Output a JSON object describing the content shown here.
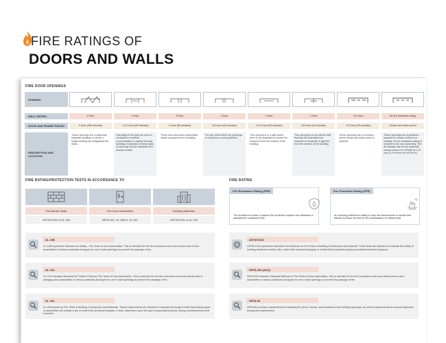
{
  "header": {
    "title_line1": "FIRE RATINGS OF",
    "title_line2": "DOORS AND WALLS"
  },
  "openings": {
    "section_title": "FIRE DOOR OPENINGS",
    "row_labels": {
      "opening": "OPENING",
      "wall_rating": "WALL RATING",
      "door_frame": "DOOR AND FRAME RATING",
      "description": "DESCRIPTION AND LOCATION"
    },
    "columns": [
      {
        "wall": "4 Hour",
        "door": "3 Hour (180 minutes)",
        "desc": "These openings are in walls that separate buildings or divide a single building into designated fire areas."
      },
      {
        "wall": "2 Hour",
        "door": "1-1/2 Hour (90 minutes)",
        "desc": "Openings of this type are used in enclosures of vertical communication or egress through buildings. Examples of these types of openings include stairwells and elevator shafts."
      },
      {
        "wall": "2 Hour",
        "door": "1 Hour (60 minutes)",
        "desc": "These door and frame assemblies divide occupancies in a building."
      },
      {
        "wall": "1 Hour",
        "door": "3/4 Hour (45 minutes)",
        "desc": "For use where there are openings in corridors or room partitions."
      },
      {
        "wall": "1 Hour",
        "door": "1-1/2 Hour (90 minutes)",
        "desc": "This opening is in a wall where there is the potential for severe fire exposure from the exterior of the building."
      },
      {
        "wall": "1 Hour",
        "door": "3/4 Hour (45 minutes)",
        "desc": "This opening is in an exterior wall that has the potential to be exposed to moderate to light fire from the exterior of the building."
      },
      {
        "wall": "1/2 Hour",
        "door": "1/3 Hour (20 minutes)",
        "desc": "These openings are in corridors where smoke and draft control is required."
      },
      {
        "wall": "No fire protection rating",
        "door": "Smoke and draft control",
        "desc": "These openings are in partitions required for smoke control in a building. No fire resistance rating is needed for the door assembly. The air leakage rate for the assembly cannot exceed 3.0 CFM/ft² at 0.10 inch (0.9 m³/min./m²) at 25 Pa)."
      }
    ]
  },
  "tests": {
    "section_title": "FIRE RATING/PROTECTION TESTS IN ACCORDANCE TO",
    "cards": [
      {
        "name": "Fire Barrier Walls",
        "standard": "ASTM E119 or UL 263"
      },
      {
        "name": "Fire Door Assemblies",
        "standard": "NFPA 252, UL 10B or UL 10C"
      },
      {
        "name": "Building Materials",
        "standard": "ASTM E119 or UL 263"
      }
    ],
    "left_items": [
      {
        "title": "UL 10B",
        "text": "UL 10B represents Standard for Safety - Fire Tests of Door Assemblies. This is intended for the fire endurance and hose stream test of door assemblies of various materials and types for use in wall openings to prevent the passage of fire."
      },
      {
        "title": "UL 10C",
        "text": "UL 10C indicates Standard for Positive Pressure Fire Tests of Door Assemblies. This is intended for the fire endurance and hose stream test of swinging door assemblies of various materials and types for use in wall openings to prevent the passage of fire."
      },
      {
        "title": "UL 263",
        "text": "UL 263 stands for Fire Tests of Building Construction and Materials. These requirements are intended to evaluate the length of time that various types of assemblies will contain a fire or retain their structural integrity, or both, dependent upon the type of assembly involved, during a predetermined test exposure."
      }
    ]
  },
  "fire_rating": {
    "section_title": "FIRE RATING",
    "boxes": [
      {
        "title": "Fire Resistance Rating (FRR)",
        "text": "The duration for which a passive fire protection system can withstand a standard fire-resistance test."
      },
      {
        "title": "Fire Protection Rating (FPR)",
        "text": "An opening protection's ability to stop the transmission of smoke and flames but does not test for the transmission of radiant heat."
      }
    ],
    "right_items": [
      {
        "title": "ASTM E119",
        "text": "ASTM E119 represents Standard Test Methods for Fire Tests of Building Construction and Material. These tests are intended to evaluate the ability of building elements contain a fire, retain their structural integrity, or exhibit both properties during a predetermined test exposure."
      },
      {
        "title": "NFPA 252 (2012)",
        "text": "NFPA 252 indicates Standard Methods of Fire Tests of Door Assemblies. This is intended for the fire endurance and hose stream test of door assemblies of various materials and types for use in wall openings to prevent the passage of fire."
      },
      {
        "title": "NFPA 80",
        "text": "NFPA 80 provides requirements for installing fire doors, frames, and hardware in the building openings, as well as requirements for annual inspection, testing and maintenance."
      }
    ]
  },
  "colors": {
    "label_blue": "#c9d2da",
    "pink": "#f3dcd5",
    "beige": "#f5ece0",
    "flame": "#e8892b"
  }
}
